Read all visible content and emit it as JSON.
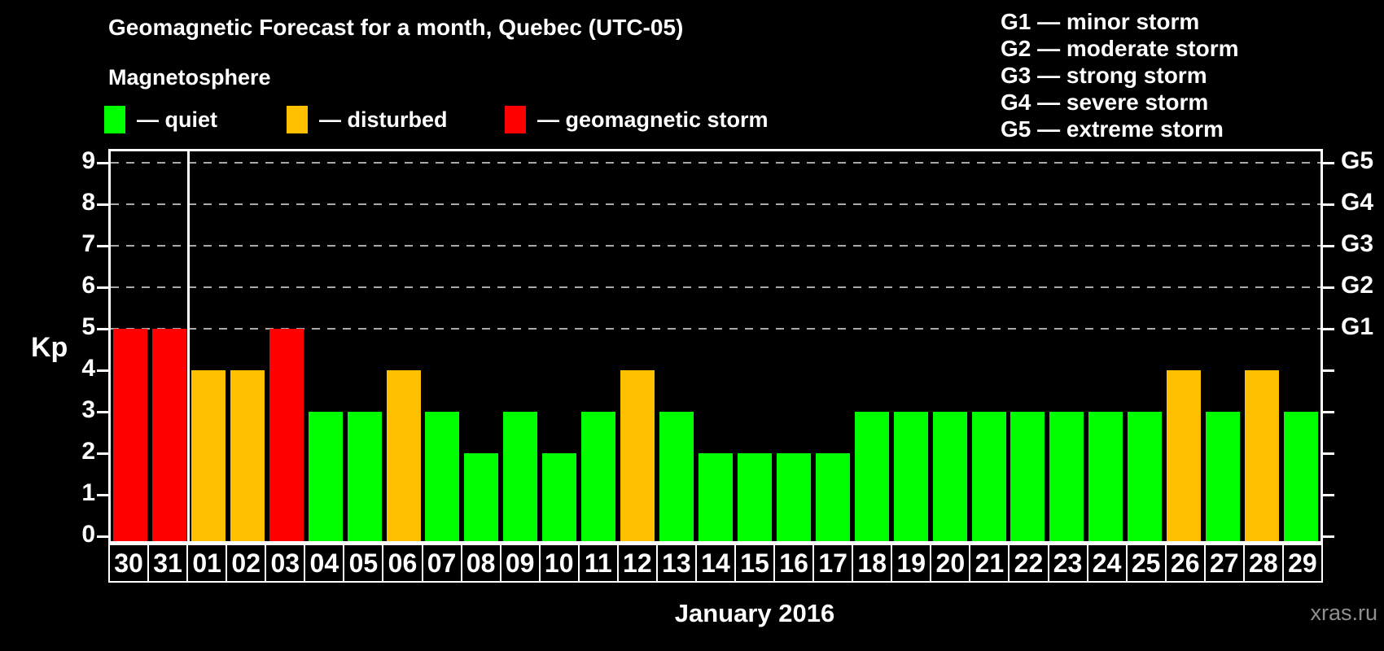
{
  "header": {
    "title": "Geomagnetic Forecast for a month, Quebec (UTC-05)",
    "subtitle": "Magnetosphere"
  },
  "legend": {
    "items": [
      {
        "key": "quiet",
        "label": "— quiet"
      },
      {
        "key": "disturbed",
        "label": "— disturbed"
      },
      {
        "key": "storm",
        "label": "— geomagnetic storm"
      }
    ]
  },
  "g_legend": {
    "items": [
      "G1 — minor storm",
      "G2 — moderate storm",
      "G3 — strong storm",
      "G4 — severe storm",
      "G5 — extreme storm"
    ]
  },
  "axes": {
    "y_label": "Kp",
    "x_label": "January 2016",
    "y_ticks": [
      0,
      1,
      2,
      3,
      4,
      5,
      6,
      7,
      8,
      9
    ],
    "right_labels": [
      {
        "kp": 5,
        "label": "G1"
      },
      {
        "kp": 6,
        "label": "G2"
      },
      {
        "kp": 7,
        "label": "G3"
      },
      {
        "kp": 8,
        "label": "G4"
      },
      {
        "kp": 9,
        "label": "G5"
      }
    ]
  },
  "watermark": "xras.ru",
  "chart_data": {
    "type": "bar",
    "title": "Geomagnetic Forecast for a month, Quebec (UTC-05)",
    "xlabel": "January 2016",
    "ylabel": "Kp",
    "ylim": [
      0,
      9.4
    ],
    "grid": "dashed horizontal at Kp 5..9 (G1..G5)",
    "legend_position": "top",
    "categories": [
      "30",
      "31",
      "01",
      "02",
      "03",
      "04",
      "05",
      "06",
      "07",
      "08",
      "09",
      "10",
      "11",
      "12",
      "13",
      "14",
      "15",
      "16",
      "17",
      "18",
      "19",
      "20",
      "21",
      "22",
      "23",
      "24",
      "25",
      "26",
      "27",
      "28",
      "29"
    ],
    "values": [
      5,
      5,
      4,
      4,
      5,
      3,
      3,
      4,
      3,
      2,
      3,
      2,
      3,
      4,
      3,
      2,
      2,
      2,
      2,
      3,
      3,
      3,
      3,
      3,
      3,
      3,
      3,
      4,
      3,
      4,
      3
    ],
    "status": [
      "storm",
      "storm",
      "disturbed",
      "disturbed",
      "storm",
      "quiet",
      "quiet",
      "disturbed",
      "quiet",
      "quiet",
      "quiet",
      "quiet",
      "quiet",
      "disturbed",
      "quiet",
      "quiet",
      "quiet",
      "quiet",
      "quiet",
      "quiet",
      "quiet",
      "quiet",
      "quiet",
      "quiet",
      "quiet",
      "quiet",
      "quiet",
      "disturbed",
      "quiet",
      "disturbed",
      "quiet"
    ],
    "month_separator_after_index": 1,
    "gridlines_kp": [
      5,
      6,
      7,
      8,
      9
    ],
    "colors": {
      "quiet": "#00ff00",
      "disturbed": "#ffc000",
      "storm": "#ff0000"
    }
  }
}
